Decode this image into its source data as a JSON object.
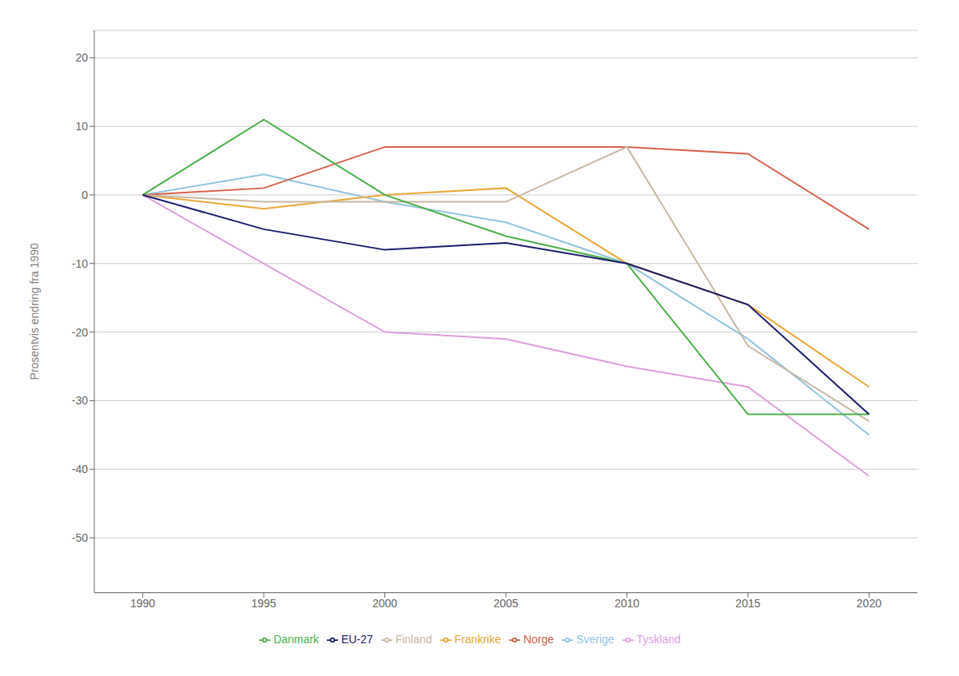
{
  "chart_data": {
    "type": "line",
    "y_label": "Prosentvis endring fra 1990",
    "x": [
      1990,
      1995,
      2000,
      2005,
      2010,
      2015,
      2020
    ],
    "series": [
      {
        "name": "Sverige",
        "color": "#92C5DE",
        "values": [
          0,
          3,
          -1,
          -4,
          -10,
          -21,
          -35
        ]
      },
      {
        "name": "Norge",
        "color": "#D6604D",
        "values": [
          0,
          1,
          7,
          7,
          7,
          6,
          -5
        ]
      },
      {
        "name": "Tyskland",
        "color": "#DDA0DD",
        "values": [
          0,
          -10,
          -20,
          -21,
          -25,
          -28,
          -41
        ]
      },
      {
        "name": "Frankrike",
        "color": "#E8A838",
        "values": [
          0,
          -2,
          0,
          1,
          -10,
          -16,
          -28
        ]
      },
      {
        "name": "Finland",
        "color": "#C8B8A2",
        "values": [
          0,
          -1,
          -1,
          -1,
          7,
          -22,
          -33
        ]
      },
      {
        "name": "Danmark",
        "color": "#4DAF4A",
        "values": [
          0,
          11,
          0,
          -6,
          -10,
          -32,
          -32
        ]
      },
      {
        "name": "EU-27",
        "color": "#1A1A6E",
        "values": [
          0,
          -5,
          -8,
          -7,
          -10,
          -16,
          -32
        ]
      }
    ],
    "xlim": [
      1988,
      2022
    ],
    "xticks": [
      1990,
      1995,
      2000,
      2005,
      2010,
      2015,
      2020
    ],
    "ylim": [
      -58,
      24
    ],
    "yticks": [
      20,
      10,
      0,
      -10,
      -20,
      -30,
      -40,
      -50
    ],
    "grid": true,
    "legend": "bottom"
  }
}
